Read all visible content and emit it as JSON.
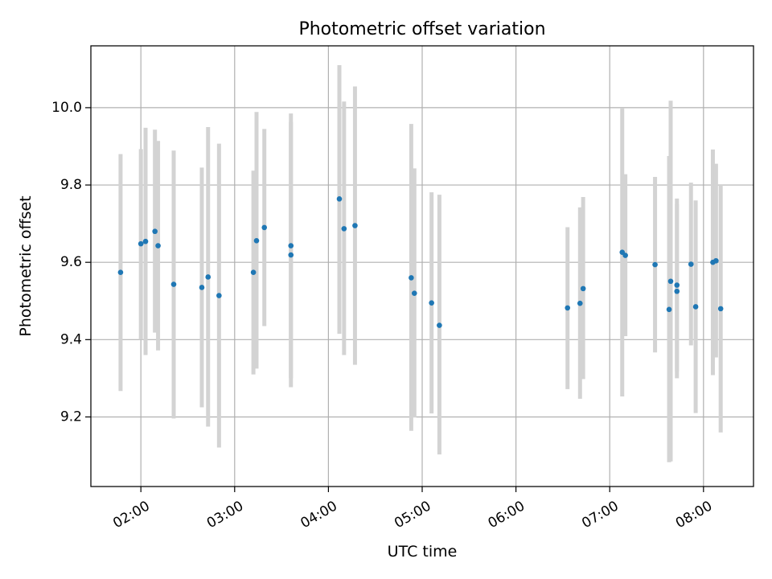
{
  "chart_data": {
    "type": "scatter",
    "title": "Photometric offset variation",
    "xlabel": "UTC time",
    "ylabel": "Photometric offset",
    "grid": true,
    "xlim": [
      "01:28",
      "08:32"
    ],
    "ylim": [
      9.02,
      10.16
    ],
    "x_ticks": [
      "02:00",
      "03:00",
      "04:00",
      "05:00",
      "06:00",
      "07:00",
      "08:00"
    ],
    "y_ticks": [
      9.2,
      9.4,
      9.6,
      9.8,
      10.0
    ],
    "y_tick_labels": [
      "9.2",
      "9.4",
      "9.6",
      "9.8",
      "10.0"
    ],
    "colors": {
      "point": "#1f77b4",
      "errorbar": "#d3d3d3",
      "grid": "#b0b0b0",
      "axis": "#000000"
    },
    "series": [
      {
        "points": [
          {
            "x": "01:47",
            "y": 9.574,
            "ylow": 9.267,
            "yhigh": 9.88
          },
          {
            "x": "02:00",
            "y": 9.648,
            "ylow": 9.4,
            "yhigh": 9.893
          },
          {
            "x": "02:03",
            "y": 9.654,
            "ylow": 9.36,
            "yhigh": 9.948
          },
          {
            "x": "02:09",
            "y": 9.68,
            "ylow": 9.418,
            "yhigh": 9.943
          },
          {
            "x": "02:11",
            "y": 9.643,
            "ylow": 9.372,
            "yhigh": 9.914
          },
          {
            "x": "02:21",
            "y": 9.543,
            "ylow": 9.196,
            "yhigh": 9.889
          },
          {
            "x": "02:39",
            "y": 9.535,
            "ylow": 9.225,
            "yhigh": 9.845
          },
          {
            "x": "02:43",
            "y": 9.562,
            "ylow": 9.175,
            "yhigh": 9.95
          },
          {
            "x": "02:50",
            "y": 9.514,
            "ylow": 9.121,
            "yhigh": 9.907
          },
          {
            "x": "03:12",
            "y": 9.574,
            "ylow": 9.31,
            "yhigh": 9.837
          },
          {
            "x": "03:14",
            "y": 9.656,
            "ylow": 9.325,
            "yhigh": 9.989
          },
          {
            "x": "03:19",
            "y": 9.69,
            "ylow": 9.435,
            "yhigh": 9.945
          },
          {
            "x": "03:36",
            "y": 9.643,
            "ylow": 9.3,
            "yhigh": 9.985
          },
          {
            "x": "03:36",
            "y": 9.619,
            "ylow": 9.277,
            "yhigh": 9.963
          },
          {
            "x": "04:07",
            "y": 9.764,
            "ylow": 9.415,
            "yhigh": 10.11
          },
          {
            "x": "04:10",
            "y": 9.687,
            "ylow": 9.36,
            "yhigh": 10.016
          },
          {
            "x": "04:17",
            "y": 9.695,
            "ylow": 9.335,
            "yhigh": 10.055
          },
          {
            "x": "04:53",
            "y": 9.56,
            "ylow": 9.164,
            "yhigh": 9.958
          },
          {
            "x": "04:55",
            "y": 9.52,
            "ylow": 9.199,
            "yhigh": 9.843
          },
          {
            "x": "05:06",
            "y": 9.495,
            "ylow": 9.209,
            "yhigh": 9.781
          },
          {
            "x": "05:11",
            "y": 9.437,
            "ylow": 9.103,
            "yhigh": 9.775
          },
          {
            "x": "06:33",
            "y": 9.482,
            "ylow": 9.272,
            "yhigh": 9.691
          },
          {
            "x": "06:41",
            "y": 9.494,
            "ylow": 9.247,
            "yhigh": 9.742
          },
          {
            "x": "06:43",
            "y": 9.532,
            "ylow": 9.298,
            "yhigh": 9.769
          },
          {
            "x": "07:08",
            "y": 9.626,
            "ylow": 9.253,
            "yhigh": 9.998
          },
          {
            "x": "07:10",
            "y": 9.618,
            "ylow": 9.409,
            "yhigh": 9.828
          },
          {
            "x": "07:29",
            "y": 9.594,
            "ylow": 9.367,
            "yhigh": 9.821
          },
          {
            "x": "07:38",
            "y": 9.478,
            "ylow": 9.083,
            "yhigh": 9.875
          },
          {
            "x": "07:39",
            "y": 9.551,
            "ylow": 9.085,
            "yhigh": 10.018
          },
          {
            "x": "07:43",
            "y": 9.525,
            "ylow": 9.3,
            "yhigh": 9.75
          },
          {
            "x": "07:43",
            "y": 9.541,
            "ylow": 9.317,
            "yhigh": 9.765
          },
          {
            "x": "07:52",
            "y": 9.595,
            "ylow": 9.385,
            "yhigh": 9.806
          },
          {
            "x": "07:55",
            "y": 9.485,
            "ylow": 9.21,
            "yhigh": 9.76
          },
          {
            "x": "08:06",
            "y": 9.6,
            "ylow": 9.308,
            "yhigh": 9.892
          },
          {
            "x": "08:08",
            "y": 9.604,
            "ylow": 9.354,
            "yhigh": 9.855
          },
          {
            "x": "08:11",
            "y": 9.48,
            "ylow": 9.16,
            "yhigh": 9.8
          }
        ]
      }
    ]
  }
}
